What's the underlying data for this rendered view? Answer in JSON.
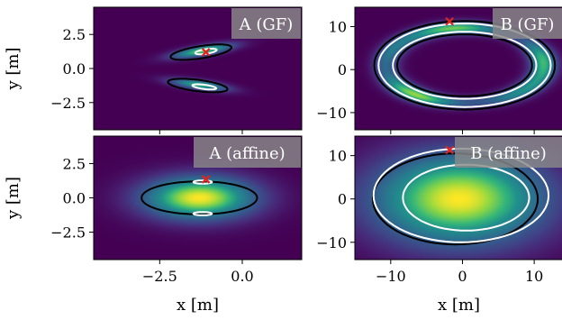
{
  "chart_data": [
    {
      "type": "heatmap",
      "label": "A (GF)",
      "xlim": [
        -4.5,
        1.8
      ],
      "ylim": [
        -4.5,
        4.5
      ],
      "xticks": [
        -2.5,
        0.0
      ],
      "xtick_labels": [
        "",
        ""
      ],
      "yticks": [
        2.5,
        0.0,
        -2.5
      ],
      "ytick_labels": [
        "2.5",
        "0.0",
        "−2.5"
      ],
      "xlabel": "",
      "ylabel": "y [m]",
      "colormap": "viridis",
      "marker": {
        "x": -1.1,
        "y": 1.2,
        "color": "#e8211d",
        "shape": "x"
      },
      "blobs": [
        {
          "cx": -1.2,
          "cy": 1.3,
          "rx": 1.25,
          "ry": 0.42,
          "angle_deg": 25,
          "intensity": 0.85
        },
        {
          "cx": -1.3,
          "cy": -1.2,
          "rx": 1.15,
          "ry": 0.4,
          "angle_deg": -20,
          "intensity": 0.75
        }
      ],
      "black_contours": [
        {
          "cx": -1.25,
          "cy": 1.2,
          "rx": 1.0,
          "ry": 0.42,
          "angle_deg": 25
        },
        {
          "cx": -1.35,
          "cy": -1.25,
          "rx": 0.95,
          "ry": 0.4,
          "angle_deg": -20
        }
      ],
      "white_contours": [
        {
          "cx": -1.1,
          "cy": 1.25,
          "rx": 0.35,
          "ry": 0.16,
          "angle_deg": 25
        },
        {
          "cx": -1.15,
          "cy": -1.35,
          "rx": 0.38,
          "ry": 0.15,
          "angle_deg": -20
        }
      ]
    },
    {
      "type": "heatmap",
      "label": "B (GF)",
      "xlim": [
        -15,
        14
      ],
      "ylim": [
        -14,
        14.5
      ],
      "xticks": [
        -10,
        0,
        10
      ],
      "xtick_labels": [
        "",
        "",
        ""
      ],
      "yticks": [
        10,
        0,
        -10
      ],
      "ytick_labels": [
        "10",
        "0",
        "−10"
      ],
      "xlabel": "",
      "ylabel": "",
      "colormap": "viridis",
      "marker": {
        "x": -1.8,
        "y": 11.2,
        "color": "#e8211d",
        "shape": "x"
      },
      "ring": {
        "cx": 0.3,
        "cy": 1.0,
        "rx": 11.0,
        "ry": 8.7,
        "width": 3.0,
        "intensity": 0.8
      },
      "black_contours": [
        {
          "cx": 0.3,
          "cy": 1.0,
          "rx": 12.6,
          "ry": 10.3,
          "angle_deg": 0
        },
        {
          "cx": 0.3,
          "cy": 1.0,
          "rx": 9.4,
          "ry": 7.2,
          "angle_deg": 0
        }
      ],
      "white_contours": [
        {
          "cx": 0.3,
          "cy": 1.0,
          "rx": 12.0,
          "ry": 9.7,
          "angle_deg": 0
        },
        {
          "cx": 0.3,
          "cy": 1.0,
          "rx": 10.0,
          "ry": 7.8,
          "angle_deg": 0
        }
      ]
    },
    {
      "type": "heatmap",
      "label": "A (affine)",
      "xlim": [
        -4.5,
        1.8
      ],
      "ylim": [
        -4.5,
        4.5
      ],
      "xticks": [
        -2.5,
        0.0
      ],
      "xtick_labels": [
        "−2.5",
        "0.0"
      ],
      "yticks": [
        2.5,
        0.0,
        -2.5
      ],
      "ytick_labels": [
        "2.5",
        "0.0",
        "−2.5"
      ],
      "xlabel": "x [m]",
      "ylabel": "y [m]",
      "colormap": "viridis",
      "marker": {
        "x": -1.1,
        "y": 1.35,
        "color": "#e8211d",
        "shape": "x"
      },
      "gaussian": {
        "cx": -1.3,
        "cy": 0.0,
        "sx": 1.2,
        "sy": 1.1,
        "intensity": 1.0
      },
      "black_contours": [
        {
          "cx": -1.3,
          "cy": 0.0,
          "rx": 1.75,
          "ry": 1.2,
          "angle_deg": 0
        }
      ],
      "white_contours": [
        {
          "cx": -1.2,
          "cy": 1.15,
          "rx": 0.28,
          "ry": 0.12,
          "angle_deg": 0
        },
        {
          "cx": -1.2,
          "cy": -1.15,
          "rx": 0.28,
          "ry": 0.12,
          "angle_deg": 0
        }
      ]
    },
    {
      "type": "heatmap",
      "label": "B (affine)",
      "xlim": [
        -15,
        14
      ],
      "ylim": [
        -14,
        14.5
      ],
      "xticks": [
        -10,
        0,
        10
      ],
      "xtick_labels": [
        "−10",
        "0",
        "10"
      ],
      "yticks": [
        10,
        0,
        -10
      ],
      "ytick_labels": [
        "10",
        "0",
        "−10"
      ],
      "xlabel": "x [m]",
      "ylabel": "",
      "colormap": "viridis",
      "marker": {
        "x": -1.8,
        "y": 11.3,
        "color": "#e8211d",
        "shape": "x"
      },
      "gaussian": {
        "cx": -0.5,
        "cy": 0.0,
        "sx": 8.5,
        "sy": 7.5,
        "intensity": 1.0
      },
      "black_contours": [
        {
          "cx": -1.0,
          "cy": 0.0,
          "rx": 11.5,
          "ry": 10.5,
          "angle_deg": 0
        }
      ],
      "white_contours": [
        {
          "cx": -0.2,
          "cy": 0.8,
          "rx": 12.2,
          "ry": 10.8,
          "angle_deg": 0
        },
        {
          "cx": 0.5,
          "cy": 0.3,
          "rx": 8.8,
          "ry": 7.6,
          "angle_deg": 0
        }
      ]
    }
  ]
}
